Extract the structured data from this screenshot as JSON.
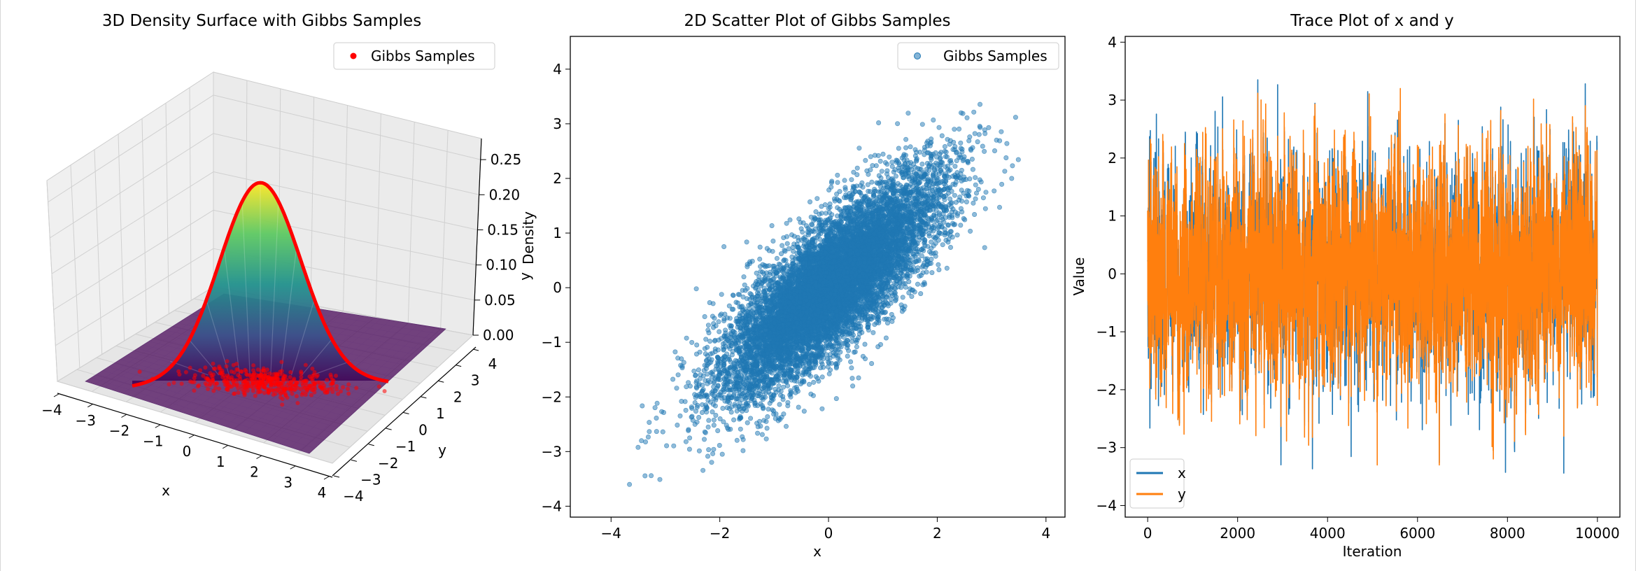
{
  "chart_data": [
    {
      "type": "surface3d",
      "title": "3D Density Surface with Gibbs Samples",
      "xlabel": "x",
      "ylabel": "y",
      "zlabel": "Density",
      "xlim": [
        -4,
        4
      ],
      "ylim": [
        -4,
        4
      ],
      "zlim": [
        0,
        0.28
      ],
      "x_ticks": [
        "−4",
        "−3",
        "−2",
        "−1",
        "0",
        "1",
        "2",
        "3",
        "4"
      ],
      "y_ticks": [
        "−3",
        "−2",
        "−1",
        "0",
        "1",
        "2",
        "3",
        "4"
      ],
      "y_tick_neg4": "−4",
      "z_ticks": [
        "0.00",
        "0.05",
        "0.10",
        "0.15",
        "0.20",
        "0.25"
      ],
      "legend": [
        "Gibbs Samples"
      ],
      "legend_position": "top-right",
      "grid": true,
      "colormap": "viridis",
      "peak_density": 0.265,
      "sample_color": "#ff0000"
    },
    {
      "type": "scatter",
      "title": "2D Scatter Plot of Gibbs Samples",
      "xlabel": "x",
      "ylabel": "y",
      "xlim": [
        -4.75,
        4.35
      ],
      "ylim": [
        -4.2,
        4.6
      ],
      "x_ticks": [
        "−4",
        "−2",
        "0",
        "2",
        "4"
      ],
      "y_ticks": [
        "−4",
        "−3",
        "−2",
        "−1",
        "0",
        "1",
        "2",
        "3",
        "4"
      ],
      "legend": [
        "Gibbs Samples"
      ],
      "legend_position": "top-right",
      "grid": false,
      "color": "#1f77b4",
      "mean": [
        0,
        0
      ],
      "std": [
        1,
        1
      ],
      "correlation": 0.8,
      "n_samples": 10000
    },
    {
      "type": "line",
      "title": "Trace Plot of x and y",
      "xlabel": "Iteration",
      "ylabel": "Value",
      "xlim": [
        -500,
        10500
      ],
      "ylim": [
        -4.2,
        4.1
      ],
      "x_ticks": [
        "0",
        "2000",
        "4000",
        "6000",
        "8000",
        "10000"
      ],
      "y_ticks": [
        "−4",
        "−3",
        "−2",
        "−1",
        "0",
        "1",
        "2",
        "3",
        "4"
      ],
      "series": [
        {
          "name": "x",
          "color": "#1f77b4",
          "n_points": 10000,
          "min": -3.8,
          "max": 3.35
        },
        {
          "name": "y",
          "color": "#ff7f0e",
          "n_points": 10000,
          "min": -3.3,
          "max": 3.7
        }
      ],
      "legend_position": "bottom-left",
      "grid": false
    }
  ]
}
